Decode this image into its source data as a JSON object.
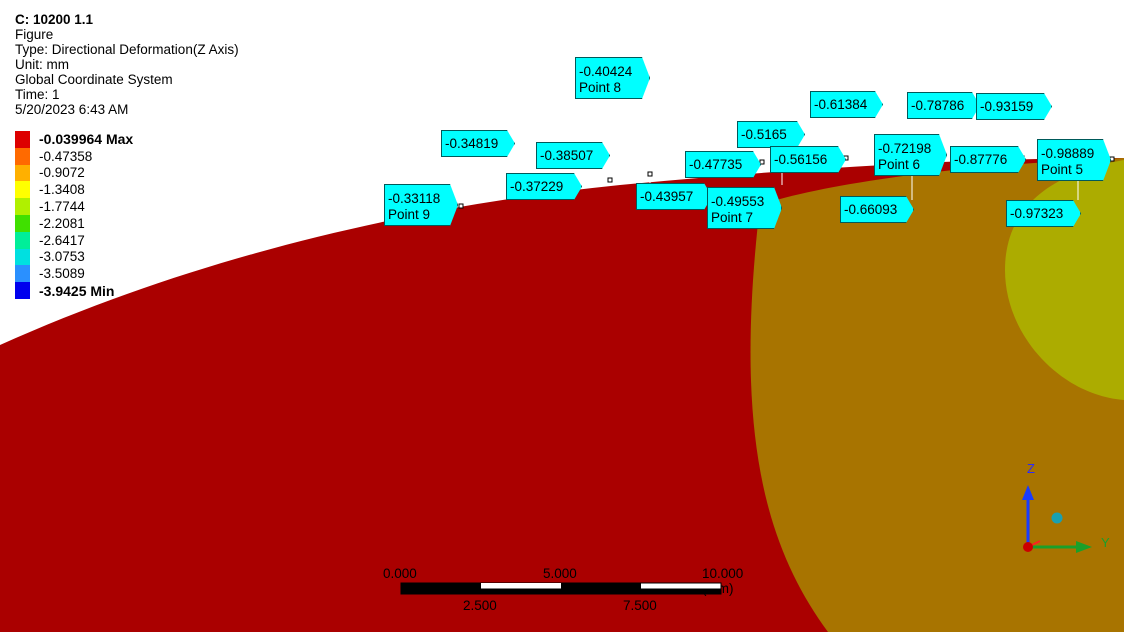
{
  "header": {
    "title": "C: 10200 1.1",
    "lines": [
      "Figure",
      "Type: Directional Deformation(Z Axis)",
      "Unit: mm",
      "Global Coordinate System",
      "Time: 1",
      "5/20/2023 6:43 AM"
    ]
  },
  "legend": {
    "entries": [
      {
        "label": "-0.039964 Max",
        "color": "#dd0000",
        "bold": true
      },
      {
        "label": "-0.47358",
        "color": "#ff6a00"
      },
      {
        "label": "-0.9072",
        "color": "#ffb000"
      },
      {
        "label": "-1.3408",
        "color": "#ffff00"
      },
      {
        "label": "-1.7744",
        "color": "#b0f000"
      },
      {
        "label": "-2.2081",
        "color": "#40e000"
      },
      {
        "label": "-2.6417",
        "color": "#00ee99"
      },
      {
        "label": "-3.0753",
        "color": "#00e0e0"
      },
      {
        "label": "-3.5089",
        "color": "#2a90ff"
      },
      {
        "label": "-3.9425 Min",
        "color": "#0000ee",
        "bold": true
      }
    ]
  },
  "probes": [
    {
      "value": "-0.40424",
      "point": "Point 8"
    },
    {
      "value": "-0.61384"
    },
    {
      "value": "-0.78786"
    },
    {
      "value": "-0.93159"
    },
    {
      "value": "-0.34819"
    },
    {
      "value": "-0.5165"
    },
    {
      "value": "-0.38507"
    },
    {
      "value": "-0.72198",
      "point": "Point 6"
    },
    {
      "value": "-0.47735"
    },
    {
      "value": "-0.56156"
    },
    {
      "value": "-0.87776"
    },
    {
      "value": "-0.98889",
      "point": "Point 5"
    },
    {
      "value": "-0.37229"
    },
    {
      "value": "-0.33118",
      "point": "Point 9"
    },
    {
      "value": "-0.43957"
    },
    {
      "value": "-0.49553",
      "point": "Point 7"
    },
    {
      "value": "-0.66093"
    },
    {
      "value": "-0.97323"
    }
  ],
  "scalebar": {
    "top_labels": [
      "0.000",
      "5.000",
      "10.000 (mm)"
    ],
    "bottom_labels": [
      "2.500",
      "7.500"
    ]
  },
  "triad": {
    "z_label": "Z",
    "y_label": "Y"
  },
  "colors": {
    "region_red": "#aa0000",
    "region_orange": "#a87400",
    "region_yellow": "#acac00",
    "probe_fill": "#00ffff"
  }
}
